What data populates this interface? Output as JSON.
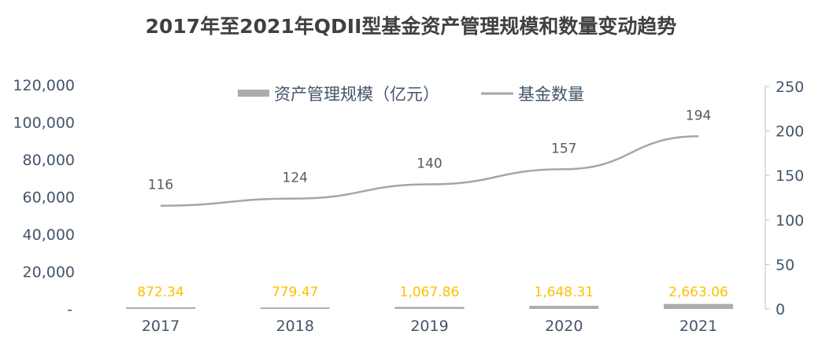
{
  "chart_data": {
    "type": "bar+line",
    "title": "2017年至2021年QDII型基金资产管理规模和数量变动趋势",
    "categories": [
      "2017",
      "2018",
      "2019",
      "2020",
      "2021"
    ],
    "series": [
      {
        "name": "资产管理规模（亿元）",
        "type": "bar",
        "axis": "left",
        "values": [
          872.34,
          779.47,
          1067.86,
          1648.31,
          2663.06
        ],
        "labels": [
          "872.34",
          "779.47",
          "1,067.86",
          "1,648.31",
          "2,663.06"
        ]
      },
      {
        "name": "基金数量",
        "type": "line",
        "axis": "right",
        "values": [
          116,
          124,
          140,
          157,
          194
        ],
        "labels": [
          "116",
          "124",
          "140",
          "157",
          "194"
        ]
      }
    ],
    "left_axis": {
      "ylim": [
        0,
        120000
      ],
      "ticks": [
        "-",
        "20,000",
        "40,000",
        "60,000",
        "80,000",
        "100,000",
        "120,000"
      ]
    },
    "right_axis": {
      "ylim": [
        0,
        250
      ],
      "ticks": [
        "0",
        "50",
        "100",
        "150",
        "200",
        "250"
      ]
    },
    "legend": "top-center",
    "grid": false,
    "colors": {
      "bar": "#AFABAB",
      "line": "#A6A6A6",
      "bar_label": "#FFC000",
      "text": "#44546A",
      "title": "#404040"
    }
  }
}
